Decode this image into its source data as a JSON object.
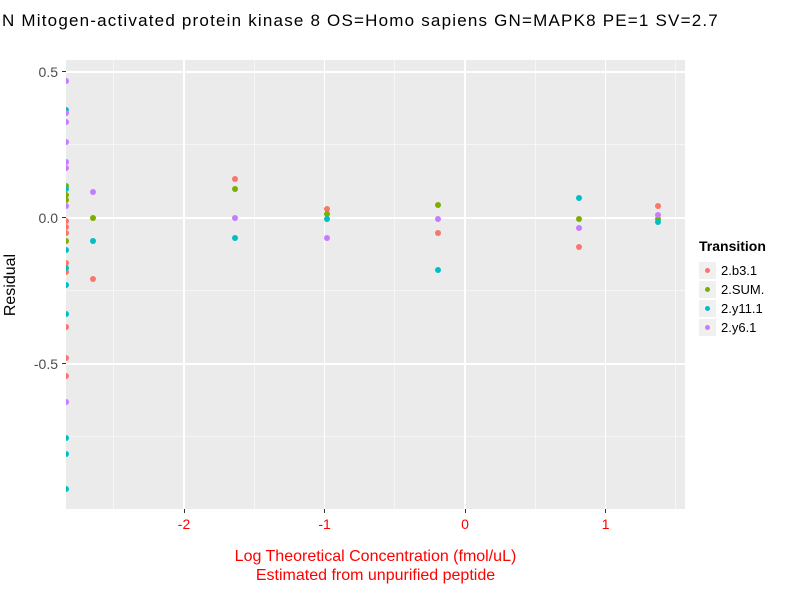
{
  "chart_data": {
    "type": "scatter",
    "title": "N Mitogen-activated protein kinase 8 OS=Homo sapiens GN=MAPK8 PE=1 SV=2.7",
    "ylabel": "Residual",
    "xlabel_lines": [
      "Log Theoretical Concentration (fmol/uL)",
      "Estimated from unpurified peptide"
    ],
    "xlim": [
      -2.84,
      1.565
    ],
    "ylim": [
      -0.997,
      0.541
    ],
    "x_major_ticks": [
      {
        "v": -2,
        "label": "-2"
      },
      {
        "v": -1,
        "label": "-1"
      },
      {
        "v": 0,
        "label": "0"
      },
      {
        "v": 1,
        "label": "1"
      }
    ],
    "x_minor_ticks": [
      -2.5,
      -1.5,
      -0.5,
      0.5,
      1.5
    ],
    "y_major_ticks": [
      {
        "v": 0.5,
        "label": "0.5"
      },
      {
        "v": 0.0,
        "label": "0.0"
      },
      {
        "v": -0.5,
        "label": "-0.5"
      }
    ],
    "y_minor_ticks": [
      0.25,
      -0.25,
      -0.75
    ],
    "grid": true,
    "legend_position": "right",
    "legend_title": "Transition",
    "colors": {
      "panel_background": "#EBEBEB",
      "gridline": "#FFFFFF",
      "x_axis_text": "#FF0000",
      "y_axis_text": "#4D4D4D",
      "title_text": "#000000"
    },
    "series": [
      {
        "name": "2.b3.1",
        "color": "#F8766D",
        "points": [
          [
            -2.84,
            -0.01
          ],
          [
            -2.84,
            -0.03
          ],
          [
            -2.84,
            -0.05
          ],
          [
            -2.84,
            -0.155
          ],
          [
            -2.84,
            -0.185
          ],
          [
            -2.84,
            -0.375
          ],
          [
            -2.84,
            -0.48
          ],
          [
            -2.84,
            -0.54
          ],
          [
            -2.65,
            -0.21
          ],
          [
            -1.64,
            0.135
          ],
          [
            -0.98,
            0.03
          ],
          [
            -0.19,
            -0.05
          ],
          [
            0.81,
            -0.1
          ],
          [
            1.37,
            0.04
          ]
        ]
      },
      {
        "name": "2.SUM.",
        "color": "#7CAE00",
        "points": [
          [
            -2.84,
            0.11
          ],
          [
            -2.84,
            0.08
          ],
          [
            -2.84,
            0.06
          ],
          [
            -2.84,
            -0.08
          ],
          [
            -2.65,
            0.0
          ],
          [
            -1.64,
            0.1
          ],
          [
            -0.98,
            0.015
          ],
          [
            -0.19,
            0.045
          ],
          [
            0.81,
            -0.005
          ],
          [
            1.37,
            -0.005
          ]
        ]
      },
      {
        "name": "2.y11.1",
        "color": "#00BFC4",
        "points": [
          [
            -2.84,
            0.37
          ],
          [
            -2.84,
            0.1
          ],
          [
            -2.84,
            -0.11
          ],
          [
            -2.84,
            -0.17
          ],
          [
            -2.84,
            -0.23
          ],
          [
            -2.84,
            -0.33
          ],
          [
            -2.84,
            -0.755
          ],
          [
            -2.84,
            -0.81
          ],
          [
            -2.84,
            -0.93
          ],
          [
            -2.65,
            -0.08
          ],
          [
            -1.64,
            -0.07
          ],
          [
            -0.98,
            -0.005
          ],
          [
            -0.19,
            -0.18
          ],
          [
            0.81,
            0.07
          ],
          [
            1.37,
            -0.015
          ]
        ]
      },
      {
        "name": "2.y6.1",
        "color": "#C77CFF",
        "points": [
          [
            -2.84,
            0.47
          ],
          [
            -2.84,
            0.36
          ],
          [
            -2.84,
            0.33
          ],
          [
            -2.84,
            0.26
          ],
          [
            -2.84,
            0.19
          ],
          [
            -2.84,
            0.17
          ],
          [
            -2.84,
            0.04
          ],
          [
            -2.84,
            -0.63
          ],
          [
            -2.65,
            0.09
          ],
          [
            -1.64,
            0.0
          ],
          [
            -0.98,
            -0.07
          ],
          [
            -0.19,
            -0.005
          ],
          [
            0.81,
            -0.035
          ],
          [
            1.37,
            0.01
          ]
        ]
      }
    ]
  }
}
